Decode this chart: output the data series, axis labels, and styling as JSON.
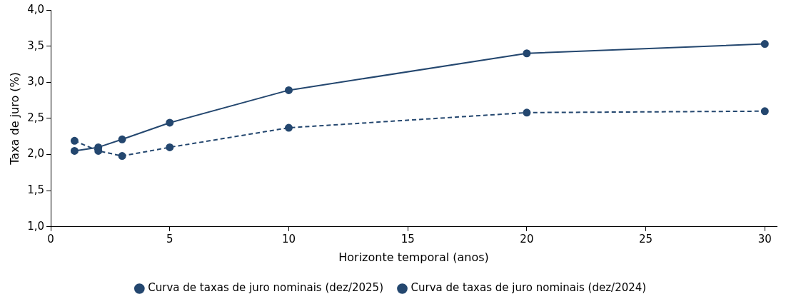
{
  "chart_data": {
    "type": "line",
    "xlabel": "Horizonte temporal (anos)",
    "ylabel": "Taxa de juro (%)",
    "x": [
      1,
      2,
      3,
      5,
      10,
      20,
      30
    ],
    "series": [
      {
        "name": "Curva de taxas de juro nominais (dez/2025)",
        "color": "#24476f",
        "line_style": "solid",
        "values": [
          2.05,
          2.1,
          2.21,
          2.44,
          2.89,
          3.4,
          3.53
        ]
      },
      {
        "name": "Curva de taxas de juro nominais (dez/2024)",
        "color": "#24476f",
        "line_style": "dashed",
        "values": [
          2.19,
          2.05,
          1.98,
          2.1,
          2.37,
          2.58,
          2.6
        ]
      }
    ],
    "xlim": [
      0,
      30.5
    ],
    "xticks": [
      0,
      5,
      10,
      15,
      20,
      25,
      30
    ],
    "ylim": [
      1,
      4
    ],
    "yticks": [
      {
        "value": 1,
        "label": "1,0"
      },
      {
        "value": 1.5,
        "label": "1,5"
      },
      {
        "value": 2,
        "label": "2,0"
      },
      {
        "value": 2.5,
        "label": "2,5"
      },
      {
        "value": 3,
        "label": "3,0"
      },
      {
        "value": 3.5,
        "label": "3,5"
      },
      {
        "value": 4,
        "label": "4,0"
      }
    ],
    "grid": false,
    "legend": "bottom",
    "marker": "circle"
  }
}
